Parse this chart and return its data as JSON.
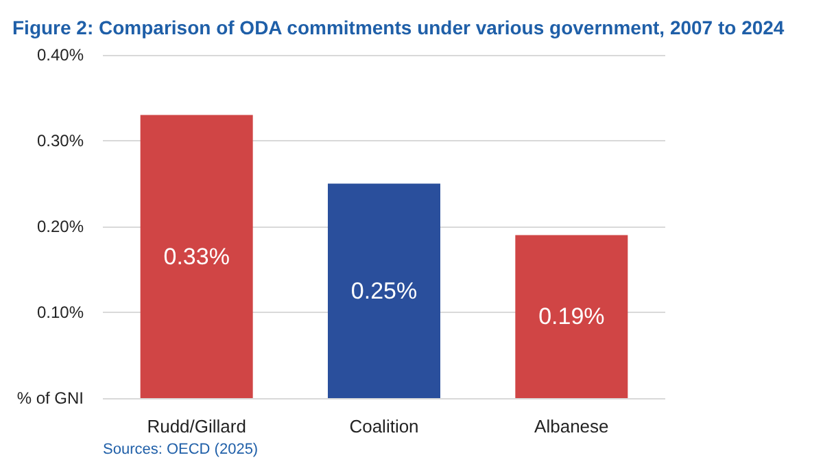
{
  "chart_data": {
    "type": "bar",
    "title": "Figure 2: Comparison of ODA commitments under various government, 2007 to 2024",
    "categories": [
      "Rudd/Gillard",
      "Coalition",
      "Albanese"
    ],
    "values": [
      0.33,
      0.25,
      0.19
    ],
    "colors": [
      "#d04545",
      "#2a4f9c",
      "#d04545"
    ],
    "value_labels": [
      "0.33%",
      "0.25%",
      "0.19%"
    ],
    "ylim": [
      0,
      0.4
    ],
    "yticks": [
      {
        "value": 0,
        "label": "% of GNI"
      },
      {
        "value": 0.1,
        "label": "0.10%"
      },
      {
        "value": 0.2,
        "label": "0.20%"
      },
      {
        "value": 0.3,
        "label": "0.30%"
      },
      {
        "value": 0.4,
        "label": "0.40%"
      }
    ],
    "grid": "y",
    "annotations": [
      "Sources: OECD (2025)"
    ]
  }
}
